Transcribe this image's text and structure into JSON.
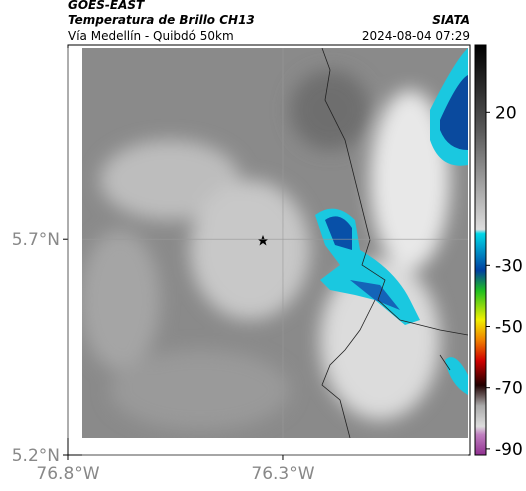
{
  "header": {
    "source": "GOES-EAST",
    "product": "Temperatura de Brillo CH13",
    "place": "Vía Medellín - Quibdó 50km",
    "agency": "SIATA",
    "datetime": "2024-08-04 07:29"
  },
  "map": {
    "lat_lim": [
      5.2,
      6.15
    ],
    "lon_lim": [
      -76.8,
      -75.865
    ],
    "lat_ticks": [
      {
        "value": 5.7,
        "label": "5.7°N"
      },
      {
        "value": 5.2,
        "label": "5.2°N"
      }
    ],
    "lon_ticks": [
      {
        "value": -76.8,
        "label": "76.8°W"
      },
      {
        "value": -76.3,
        "label": "76.3°W"
      }
    ],
    "colorbar": {
      "lim": [
        -92,
        42
      ],
      "ticks": [
        20,
        -30,
        -50,
        -70,
        -90
      ]
    }
  }
}
